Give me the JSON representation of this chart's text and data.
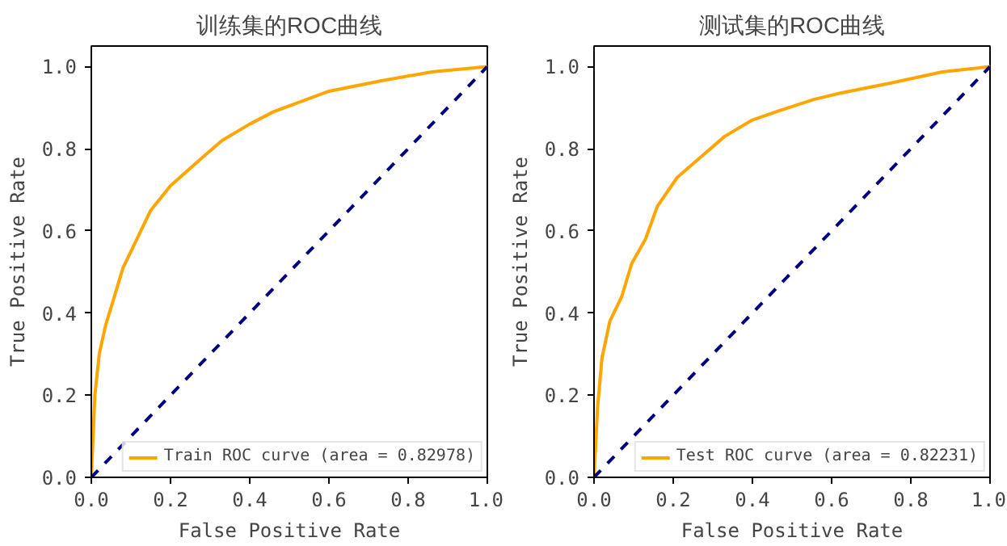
{
  "chart_data": [
    {
      "type": "line",
      "title": "训练集的ROC曲线",
      "xlabel": "False Positive Rate",
      "ylabel": "True Positive Rate",
      "xlim": [
        0,
        1
      ],
      "ylim": [
        0,
        1.05
      ],
      "xticks": [
        {
          "value": 0,
          "label": "0.0"
        },
        {
          "value": 0.2,
          "label": "0.2"
        },
        {
          "value": 0.4,
          "label": "0.4"
        },
        {
          "value": 0.6,
          "label": "0.6"
        },
        {
          "value": 0.8,
          "label": "0.8"
        },
        {
          "value": 1,
          "label": "1.0"
        }
      ],
      "yticks": [
        {
          "value": 0,
          "label": "0.0"
        },
        {
          "value": 0.2,
          "label": "0.2"
        },
        {
          "value": 0.4,
          "label": "0.4"
        },
        {
          "value": 0.6,
          "label": "0.6"
        },
        {
          "value": 0.8,
          "label": "0.8"
        },
        {
          "value": 1,
          "label": "1.0"
        }
      ],
      "grid": false,
      "legend": "bottom right",
      "series": [
        {
          "name": "Train ROC curve (area = 0.82978)",
          "color": "#ffa500",
          "line_style": "solid",
          "x": [
            0,
            0.009,
            0.02,
            0.036,
            0.055,
            0.08,
            0.11,
            0.15,
            0.2,
            0.27,
            0.33,
            0.4,
            0.46,
            0.6,
            0.73,
            0.86,
            1
          ],
          "values": [
            0,
            0.2,
            0.3,
            0.37,
            0.43,
            0.51,
            0.57,
            0.65,
            0.71,
            0.77,
            0.82,
            0.86,
            0.89,
            0.94,
            0.965,
            0.987,
            1
          ]
        },
        {
          "color": "#000080",
          "line_style": "dashed",
          "x": [
            0,
            1
          ],
          "values": [
            0,
            1
          ]
        }
      ]
    },
    {
      "type": "line",
      "title": "测试集的ROC曲线",
      "xlabel": "False Positive Rate",
      "ylabel": "True Positive Rate",
      "xlim": [
        0,
        1
      ],
      "ylim": [
        0,
        1.05
      ],
      "xticks": [
        {
          "value": 0,
          "label": "0.0"
        },
        {
          "value": 0.2,
          "label": "0.2"
        },
        {
          "value": 0.4,
          "label": "0.4"
        },
        {
          "value": 0.6,
          "label": "0.6"
        },
        {
          "value": 0.8,
          "label": "0.8"
        },
        {
          "value": 1,
          "label": "1.0"
        }
      ],
      "yticks": [
        {
          "value": 0,
          "label": "0.0"
        },
        {
          "value": 0.2,
          "label": "0.2"
        },
        {
          "value": 0.4,
          "label": "0.4"
        },
        {
          "value": 0.6,
          "label": "0.6"
        },
        {
          "value": 0.8,
          "label": "0.8"
        },
        {
          "value": 1,
          "label": "1.0"
        }
      ],
      "grid": false,
      "legend": "bottom right",
      "series": [
        {
          "name": "Test ROC curve (area = 0.82231)",
          "color": "#ffa500",
          "line_style": "solid",
          "x": [
            0,
            0.009,
            0.02,
            0.04,
            0.07,
            0.095,
            0.13,
            0.16,
            0.21,
            0.27,
            0.33,
            0.4,
            0.46,
            0.555,
            0.62,
            0.75,
            0.88,
            1
          ],
          "values": [
            0,
            0.17,
            0.29,
            0.38,
            0.44,
            0.52,
            0.58,
            0.66,
            0.73,
            0.78,
            0.83,
            0.87,
            0.89,
            0.92,
            0.935,
            0.96,
            0.987,
            1
          ]
        },
        {
          "color": "#000080",
          "line_style": "dashed",
          "x": [
            0,
            1
          ],
          "values": [
            0,
            1
          ]
        }
      ]
    }
  ]
}
